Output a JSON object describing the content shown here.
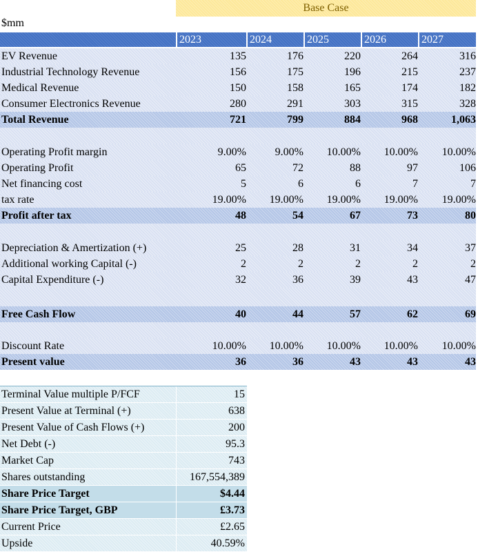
{
  "title": "Base Case",
  "unit": "$mm",
  "years": [
    "2023",
    "2024",
    "2025",
    "2026",
    "2027"
  ],
  "groups": [
    [
      {
        "label": "EV Revenue",
        "values": [
          "135",
          "176",
          "220",
          "264",
          "316"
        ],
        "bold": false
      },
      {
        "label": "Industrial Technology Revenue",
        "values": [
          "156",
          "175",
          "196",
          "215",
          "237"
        ],
        "bold": false
      },
      {
        "label": "Medical Revenue",
        "values": [
          "150",
          "158",
          "165",
          "174",
          "182"
        ],
        "bold": false
      },
      {
        "label": "Consumer Electronics Revenue",
        "values": [
          "280",
          "291",
          "303",
          "315",
          "328"
        ],
        "bold": false
      },
      {
        "label": "Total Revenue",
        "values": [
          "721",
          "799",
          "884",
          "968",
          "1,063"
        ],
        "bold": true
      }
    ],
    [
      {
        "label": "Operating Profit margin",
        "values": [
          "9.00%",
          "9.00%",
          "10.00%",
          "10.00%",
          "10.00%"
        ],
        "bold": false
      },
      {
        "label": "Operating Profit",
        "values": [
          "65",
          "72",
          "88",
          "97",
          "106"
        ],
        "bold": false
      },
      {
        "label": "Net financing cost",
        "values": [
          "5",
          "6",
          "6",
          "7",
          "7"
        ],
        "bold": false
      },
      {
        "label": "tax rate",
        "values": [
          "19.00%",
          "19.00%",
          "19.00%",
          "19.00%",
          "19.00%"
        ],
        "bold": false
      },
      {
        "label": "Profit after tax",
        "values": [
          "48",
          "54",
          "67",
          "73",
          "80"
        ],
        "bold": true
      }
    ],
    [
      {
        "label": "Depreciation & Amertization (+)",
        "values": [
          "25",
          "28",
          "31",
          "34",
          "37"
        ],
        "bold": false
      },
      {
        "label": "Additional working Capital (-)",
        "values": [
          "2",
          "2",
          "2",
          "2",
          "2"
        ],
        "bold": false
      },
      {
        "label": "Capital Expenditure (-)",
        "values": [
          "32",
          "36",
          "39",
          "43",
          "47"
        ],
        "bold": false
      }
    ],
    [
      {
        "label": "Free Cash Flow",
        "values": [
          "40",
          "44",
          "57",
          "62",
          "69"
        ],
        "bold": true
      }
    ],
    [
      {
        "label": "Discount Rate",
        "values": [
          "10.00%",
          "10.00%",
          "10.00%",
          "10.00%",
          "10.00%"
        ],
        "bold": false
      },
      {
        "label": "Present value",
        "values": [
          "36",
          "36",
          "43",
          "43",
          "43"
        ],
        "bold": true
      }
    ]
  ],
  "summary": [
    {
      "label": "Terminal Value multiple P/FCF",
      "value": "15",
      "bold": false
    },
    {
      "label": "Present Value at Terminal (+)",
      "value": "638",
      "bold": false
    },
    {
      "label": "Present Value of Cash Flows (+)",
      "value": "200",
      "bold": false
    },
    {
      "label": "Net Debt (-)",
      "value": "95.3",
      "bold": false
    },
    {
      "label": "Market Cap",
      "value": "743",
      "bold": false
    },
    {
      "label": "Shares outstanding",
      "value": "167,554,389",
      "bold": false
    },
    {
      "label": "Share Price Target",
      "value": "$4.44",
      "bold": true
    },
    {
      "label": "Share Price Target, GBP",
      "value": "£3.73",
      "bold": true
    },
    {
      "label": "Current Price",
      "value": "£2.65",
      "bold": false
    },
    {
      "label": "Upside",
      "value": "40.59%",
      "bold": false
    }
  ]
}
